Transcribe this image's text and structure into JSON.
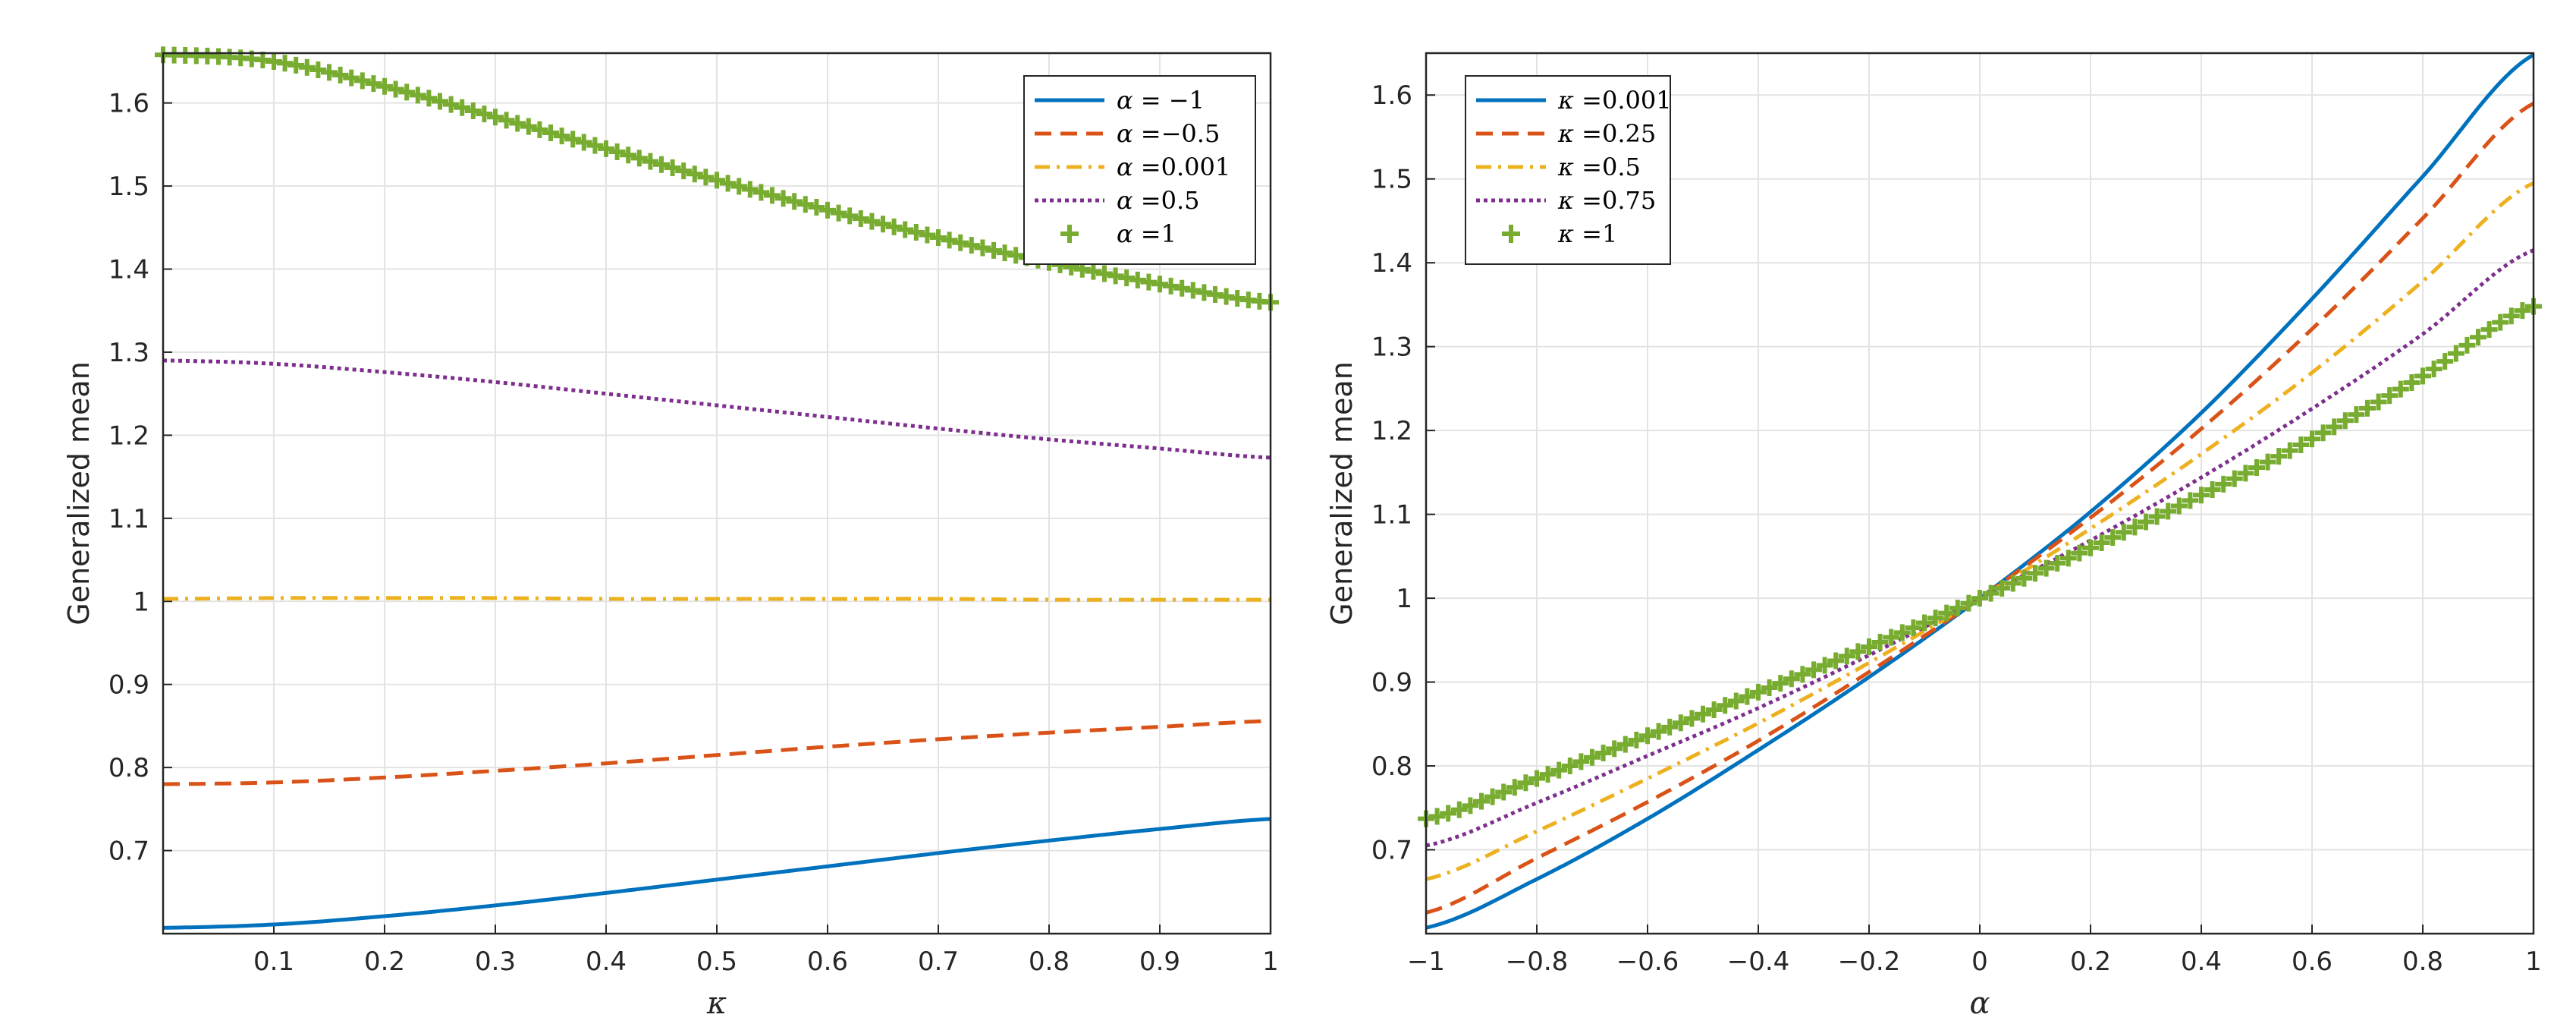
{
  "chart_data": [
    {
      "type": "line",
      "xlabel": "κ",
      "ylabel": "Generalized mean",
      "xlim": [
        0,
        1
      ],
      "ylim": [
        0.6,
        1.66
      ],
      "xticks": [
        0.1,
        0.2,
        0.3,
        0.4,
        0.5,
        0.6,
        0.7,
        0.8,
        0.9,
        1
      ],
      "xtick_labels": [
        "0.1",
        "0.2",
        "0.3",
        "0.4",
        "0.5",
        "0.6",
        "0.7",
        "0.8",
        "0.9",
        "1"
      ],
      "yticks": [
        0.7,
        0.8,
        0.9,
        1,
        1.1,
        1.2,
        1.3,
        1.4,
        1.5,
        1.6
      ],
      "ytick_labels": [
        "0.7",
        "0.8",
        "0.9",
        "1",
        "1.1",
        "1.2",
        "1.3",
        "1.4",
        "1.5",
        "1.6"
      ],
      "grid": true,
      "legend_position": "top-right",
      "x": [
        0,
        0.1,
        0.2,
        0.3,
        0.4,
        0.5,
        0.6,
        0.7,
        0.8,
        0.9,
        1
      ],
      "series": [
        {
          "name": "α = −1",
          "legend_var": "α",
          "legend_value": " = −1",
          "color": "#0072BD",
          "style": "solid",
          "values": [
            0.607,
            0.611,
            0.621,
            0.634,
            0.649,
            0.665,
            0.681,
            0.697,
            0.712,
            0.726,
            0.738
          ]
        },
        {
          "name": "α = −0.5",
          "legend_var": "α",
          "legend_value": " =−0.5",
          "color": "#D95319",
          "style": "dashed",
          "values": [
            0.78,
            0.782,
            0.788,
            0.796,
            0.805,
            0.815,
            0.825,
            0.834,
            0.842,
            0.849,
            0.856
          ]
        },
        {
          "name": "α = 0.001",
          "legend_var": "α",
          "legend_value": " =0.001",
          "color": "#EDB120",
          "style": "dashdot",
          "values": [
            1.003,
            1.004,
            1.004,
            1.004,
            1.003,
            1.003,
            1.003,
            1.003,
            1.002,
            1.002,
            1.002
          ]
        },
        {
          "name": "α = 0.5",
          "legend_var": "α",
          "legend_value": " =0.5",
          "color": "#7E2F8E",
          "style": "dotted",
          "values": [
            1.29,
            1.286,
            1.276,
            1.264,
            1.25,
            1.236,
            1.222,
            1.208,
            1.195,
            1.184,
            1.173
          ]
        },
        {
          "name": "α = 1",
          "legend_var": "α",
          "legend_value": " =1",
          "color": "#77AC30",
          "style": "plus",
          "values": [
            1.658,
            1.65,
            1.62,
            1.583,
            1.545,
            1.507,
            1.471,
            1.438,
            1.408,
            1.382,
            1.36
          ]
        }
      ]
    },
    {
      "type": "line",
      "xlabel": "α",
      "ylabel": "Generalized mean",
      "xlim": [
        -1,
        1
      ],
      "ylim": [
        0.6,
        1.65
      ],
      "xticks": [
        -1,
        -0.8,
        -0.6,
        -0.4,
        -0.2,
        0,
        0.2,
        0.4,
        0.6,
        0.8,
        1
      ],
      "xtick_labels": [
        "−1",
        "−0.8",
        "−0.6",
        "−0.4",
        "−0.2",
        "0",
        "0.2",
        "0.4",
        "0.6",
        "0.8",
        "1"
      ],
      "yticks": [
        0.7,
        0.8,
        0.9,
        1,
        1.1,
        1.2,
        1.3,
        1.4,
        1.5,
        1.6
      ],
      "ytick_labels": [
        "0.7",
        "0.8",
        "0.9",
        "1",
        "1.1",
        "1.2",
        "1.3",
        "1.4",
        "1.5",
        "1.6"
      ],
      "grid": true,
      "legend_position": "top-left",
      "x": [
        -1,
        -0.8,
        -0.6,
        -0.4,
        -0.2,
        0,
        0.2,
        0.4,
        0.6,
        0.8,
        1
      ],
      "series": [
        {
          "name": "κ = 0.001",
          "legend_var": "κ",
          "legend_value": " =0.001",
          "color": "#0072BD",
          "style": "solid",
          "values": [
            0.607,
            0.665,
            0.737,
            0.819,
            0.906,
            1.0,
            1.103,
            1.221,
            1.357,
            1.503,
            1.648
          ]
        },
        {
          "name": "κ = 0.25",
          "legend_var": "κ",
          "legend_value": " =0.25",
          "color": "#D95319",
          "style": "dashed",
          "values": [
            0.625,
            0.69,
            0.757,
            0.83,
            0.912,
            1.0,
            1.096,
            1.202,
            1.321,
            1.453,
            1.59
          ]
        },
        {
          "name": "κ = 0.5",
          "legend_var": "κ",
          "legend_value": " =0.5",
          "color": "#EDB120",
          "style": "dashdot",
          "values": [
            0.665,
            0.722,
            0.785,
            0.851,
            0.923,
            1.0,
            1.083,
            1.172,
            1.269,
            1.378,
            1.495
          ]
        },
        {
          "name": "κ = 0.75",
          "legend_var": "κ",
          "legend_value": " =0.75",
          "color": "#7E2F8E",
          "style": "dotted",
          "values": [
            0.705,
            0.756,
            0.812,
            0.869,
            0.932,
            1.0,
            1.069,
            1.144,
            1.226,
            1.315,
            1.415
          ]
        },
        {
          "name": "κ = 1",
          "legend_var": "κ",
          "legend_value": " =1",
          "color": "#77AC30",
          "style": "plus",
          "values": [
            0.737,
            0.785,
            0.836,
            0.888,
            0.942,
            1.0,
            1.06,
            1.123,
            1.19,
            1.265,
            1.348
          ]
        }
      ]
    }
  ]
}
